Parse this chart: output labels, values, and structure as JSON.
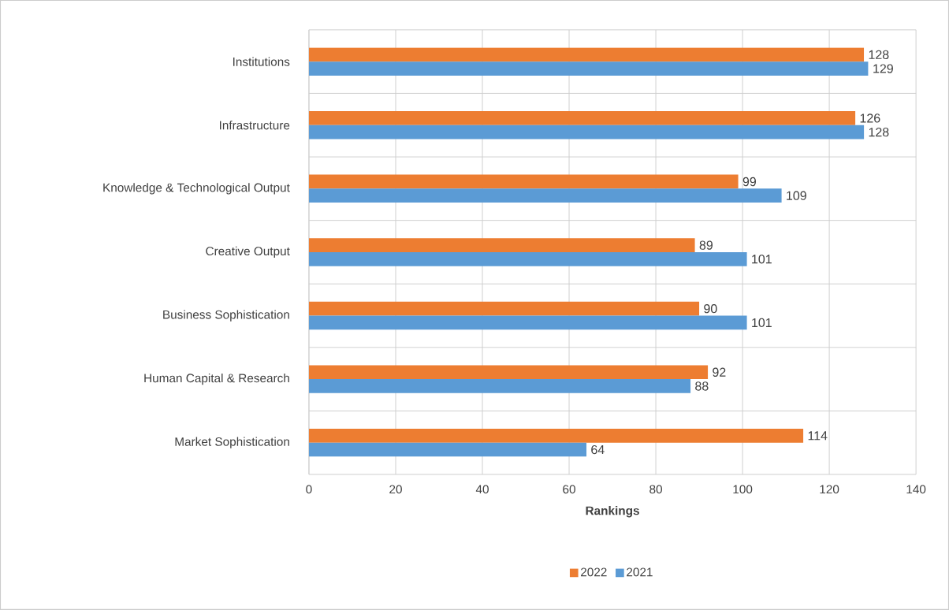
{
  "chart_data": {
    "type": "bar",
    "orientation": "horizontal",
    "xlabel": "Rankings",
    "categories": [
      "Institutions",
      "Infrastructure",
      "Knowledge & Technological Output",
      "Creative Output",
      "Business Sophistication",
      "Human Capital & Research",
      "Market Sophistication"
    ],
    "series": [
      {
        "name": "2022",
        "color": "#ed7d31",
        "values": [
          128,
          126,
          99,
          89,
          90,
          92,
          114
        ]
      },
      {
        "name": "2021",
        "color": "#5b9bd5",
        "values": [
          129,
          128,
          109,
          101,
          101,
          88,
          64
        ]
      }
    ],
    "xlim": [
      0,
      140
    ],
    "xticks": [
      0,
      20,
      40,
      60,
      80,
      100,
      120,
      140
    ],
    "grid": true,
    "legend": "bottom",
    "data_labels": true
  }
}
